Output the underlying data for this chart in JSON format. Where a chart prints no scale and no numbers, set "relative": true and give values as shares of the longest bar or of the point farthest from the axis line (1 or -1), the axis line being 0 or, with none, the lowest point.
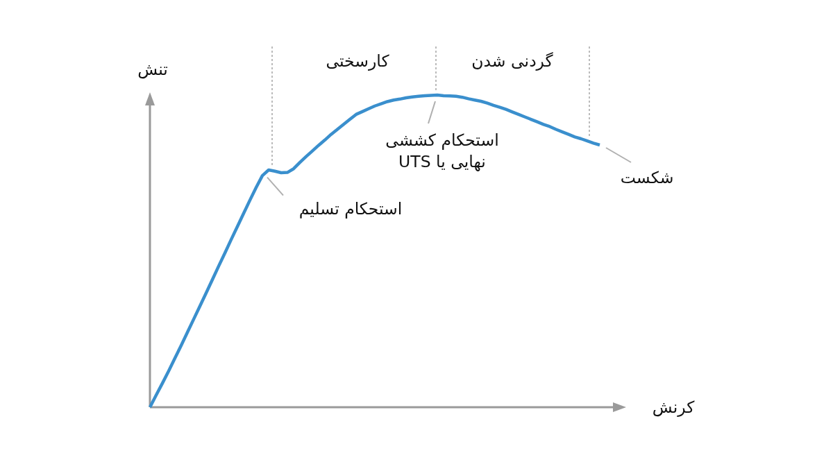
{
  "chart_data": {
    "type": "line",
    "relative": true,
    "xlabel": "کرنش",
    "ylabel": "تنش",
    "categories": [
      null,
      null,
      null,
      null,
      null,
      null,
      null,
      null,
      null,
      null,
      null,
      null,
      null,
      null,
      null,
      null,
      null,
      null,
      null,
      null,
      null,
      null,
      null,
      null,
      null,
      null,
      null,
      null,
      null,
      null,
      null,
      null,
      null,
      null,
      null,
      null,
      null,
      null,
      null,
      null,
      null,
      null,
      null,
      null,
      null,
      null,
      null,
      null,
      null,
      null,
      null,
      null,
      null,
      null,
      null,
      null,
      null,
      null,
      null,
      null,
      null,
      null,
      null,
      null,
      null,
      null,
      null,
      null,
      null,
      null,
      null,
      null,
      null
    ],
    "series": [
      {
        "color": "#3a8fcd",
        "values": [
          0,
          0.039,
          0.077,
          0.116,
          0.157,
          0.198,
          0.24,
          0.282,
          0.324,
          0.366,
          0.409,
          0.452,
          0.494,
          0.537,
          0.579,
          0.621,
          0.663,
          0.704,
          0.742,
          0.76,
          0.756,
          0.751,
          0.752,
          0.764,
          0.784,
          0.803,
          0.821,
          0.839,
          0.856,
          0.874,
          0.89,
          0.906,
          0.922,
          0.938,
          0.947,
          0.956,
          0.965,
          0.972,
          0.979,
          0.984,
          0.987,
          0.991,
          0.994,
          0.996,
          0.998,
          0.999,
          1.0,
          0.998,
          0.997,
          0.996,
          0.993,
          0.988,
          0.984,
          0.98,
          0.974,
          0.967,
          0.961,
          0.954,
          0.946,
          0.938,
          0.93,
          0.922,
          0.914,
          0.906,
          0.899,
          0.89,
          0.882,
          0.874,
          0.866,
          0.86,
          0.853,
          0.846,
          0.84
        ]
      }
    ],
    "annotations": [
      "کارسختی",
      "گردنی شدن",
      "استحکام تسلیم",
      {
        "text": "استحکام کششی\nنهایی یا UTS",
        "y": 1.0
      },
      "شکست"
    ]
  }
}
